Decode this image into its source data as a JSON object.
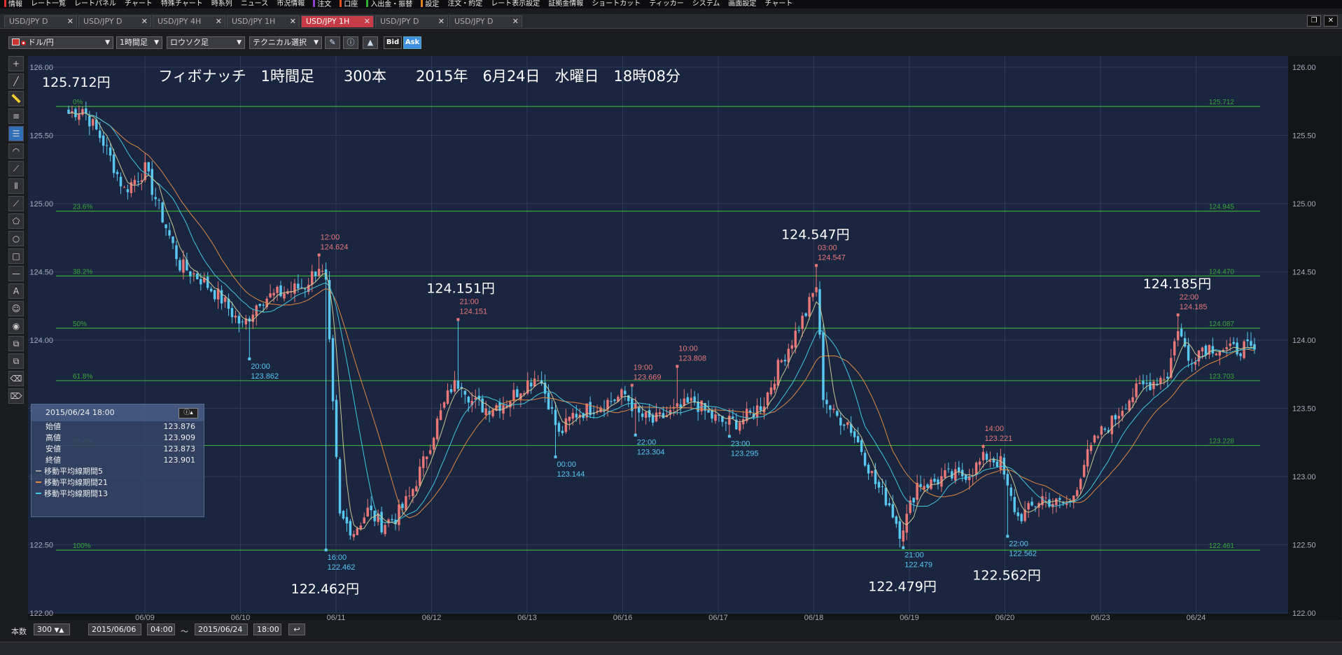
{
  "menubar": {
    "items": [
      {
        "label": "情報",
        "color": "#e03030"
      },
      {
        "label": "レート一覧",
        "color": ""
      },
      {
        "label": "レートパネル",
        "color": ""
      },
      {
        "label": "チャート",
        "color": ""
      },
      {
        "label": "特殊チャート",
        "color": ""
      },
      {
        "label": "時系列",
        "color": ""
      },
      {
        "label": "ニュース",
        "color": ""
      },
      {
        "label": "市況情報",
        "color": ""
      },
      {
        "label": "注文",
        "color": "#9040d0"
      },
      {
        "label": "口座",
        "color": "#e05020"
      },
      {
        "label": "入出金・振替",
        "color": "#30b030"
      },
      {
        "label": "設定",
        "color": "#e08020"
      },
      {
        "label": "注文・約定",
        "color": ""
      },
      {
        "label": "レート表示設定",
        "color": ""
      },
      {
        "label": "証拠金情報",
        "color": ""
      },
      {
        "label": "ショートカット",
        "color": ""
      },
      {
        "label": "ティッカー",
        "color": ""
      },
      {
        "label": "システム",
        "color": ""
      },
      {
        "label": "画面設定",
        "color": ""
      },
      {
        "label": "チャート",
        "color": ""
      }
    ]
  },
  "tabs": [
    {
      "label": "USD/JPY D",
      "active": false
    },
    {
      "label": "USD/JPY D",
      "active": false
    },
    {
      "label": "USD/JPY 4H",
      "active": false
    },
    {
      "label": "USD/JPY 1H",
      "active": false
    },
    {
      "label": "USD/JPY 1H",
      "active": true
    },
    {
      "label": "USD/JPY D",
      "active": false
    },
    {
      "label": "USD/JPY D",
      "active": false
    }
  ],
  "toolbar": {
    "pair": "ドル/円",
    "timeframe": "1時間足",
    "candle": "ロウソク足",
    "technical": "テクニカル選択",
    "bid": "Bid",
    "ask": "Ask"
  },
  "bottom": {
    "count_label": "本数",
    "count_value": "300",
    "start_date": "2015/06/06",
    "start_time": "04:00",
    "tilde": "〜",
    "end_date": "2015/06/24",
    "end_time": "18:00"
  },
  "info_panel": {
    "date": "2015/06/24 18:00",
    "rows": [
      {
        "label": "始値",
        "value": "123.876"
      },
      {
        "label": "高値",
        "value": "123.909"
      },
      {
        "label": "安値",
        "value": "123.873"
      },
      {
        "label": "終値",
        "value": "123.901"
      }
    ],
    "ma": [
      {
        "label": "移動平均線期間5",
        "color": "#a0a0a0"
      },
      {
        "label": "移動平均線期間21",
        "color": "#e08840"
      },
      {
        "label": "移動平均線期間13",
        "color": "#40c8e0"
      }
    ]
  },
  "chart_data": {
    "type": "candlestick",
    "title": "フィボナッチ　1時間足　　300本　　2015年　6月24日　水曜日　18時08分",
    "ylim": [
      122.0,
      126.0
    ],
    "y_ticks": [
      "126.00",
      "125.50",
      "125.00",
      "124.50",
      "124.00",
      "123.50",
      "123.00",
      "122.50",
      "122.00"
    ],
    "x_ticks": [
      "06/09",
      "06/10",
      "06/11",
      "06/12",
      "06/13",
      "06/16",
      "06/17",
      "06/18",
      "06/19",
      "06/20",
      "06/23",
      "06/24"
    ],
    "colors": {
      "up": "#e87878",
      "down": "#58c8f0",
      "fib": "#38a838",
      "ma5": "#c8c890",
      "ma13": "#40c8e0",
      "ma21": "#e08840",
      "grid": "#2d3a5a",
      "bg": "#1a2540"
    },
    "fib_levels": [
      {
        "pct": "0%",
        "price": 125.712,
        "label": "125.712"
      },
      {
        "pct": "23.6%",
        "price": 124.945,
        "label": "124.945"
      },
      {
        "pct": "38.2%",
        "price": 124.47,
        "label": "124.470"
      },
      {
        "pct": "50%",
        "price": 124.087,
        "label": "124.087"
      },
      {
        "pct": "61.8%",
        "price": 123.703,
        "label": "123.703"
      },
      {
        "pct": "76.4%",
        "price": 123.228,
        "label": "123.228"
      },
      {
        "pct": "100%",
        "price": 122.461,
        "label": "122.461"
      }
    ],
    "price_path": [
      [
        0,
        125.66
      ],
      [
        4,
        125.7
      ],
      [
        10,
        125.45
      ],
      [
        16,
        125.1
      ],
      [
        22,
        125.25
      ],
      [
        27,
        124.9
      ],
      [
        32,
        124.55
      ],
      [
        38,
        124.45
      ],
      [
        44,
        124.3
      ],
      [
        50,
        124.1
      ],
      [
        55,
        124.3
      ],
      [
        62,
        124.35
      ],
      [
        68,
        124.4
      ],
      [
        72,
        124.55
      ],
      [
        74,
        124.4
      ],
      [
        76,
        123.5
      ],
      [
        78,
        122.7
      ],
      [
        82,
        122.6
      ],
      [
        86,
        122.75
      ],
      [
        90,
        122.65
      ],
      [
        94,
        122.7
      ],
      [
        98,
        122.85
      ],
      [
        102,
        123.1
      ],
      [
        106,
        123.4
      ],
      [
        110,
        123.65
      ],
      [
        113,
        123.7
      ],
      [
        116,
        123.55
      ],
      [
        120,
        123.5
      ],
      [
        126,
        123.55
      ],
      [
        130,
        123.65
      ],
      [
        135,
        123.75
      ],
      [
        138,
        123.55
      ],
      [
        141,
        123.3
      ],
      [
        145,
        123.45
      ],
      [
        150,
        123.5
      ],
      [
        155,
        123.55
      ],
      [
        160,
        123.6
      ],
      [
        164,
        123.45
      ],
      [
        168,
        123.4
      ],
      [
        172,
        123.45
      ],
      [
        176,
        123.5
      ],
      [
        180,
        123.55
      ],
      [
        184,
        123.45
      ],
      [
        188,
        123.4
      ],
      [
        192,
        123.4
      ],
      [
        196,
        123.45
      ],
      [
        200,
        123.55
      ],
      [
        204,
        123.8
      ],
      [
        208,
        124.0
      ],
      [
        212,
        124.2
      ],
      [
        215,
        124.4
      ],
      [
        217,
        123.6
      ],
      [
        220,
        123.45
      ],
      [
        224,
        123.4
      ],
      [
        228,
        123.2
      ],
      [
        232,
        122.95
      ],
      [
        236,
        122.8
      ],
      [
        239,
        122.6
      ],
      [
        241,
        122.7
      ],
      [
        244,
        122.95
      ],
      [
        248,
        122.95
      ],
      [
        252,
        123.0
      ],
      [
        256,
        123.0
      ],
      [
        260,
        123.05
      ],
      [
        264,
        123.15
      ],
      [
        268,
        123.1
      ],
      [
        270,
        122.9
      ],
      [
        273,
        122.7
      ],
      [
        276,
        122.75
      ],
      [
        280,
        122.85
      ],
      [
        284,
        122.8
      ],
      [
        288,
        122.8
      ],
      [
        292,
        123.1
      ],
      [
        296,
        123.3
      ],
      [
        300,
        123.4
      ],
      [
        304,
        123.55
      ],
      [
        308,
        123.65
      ],
      [
        312,
        123.7
      ],
      [
        316,
        123.75
      ],
      [
        319,
        124.1
      ],
      [
        322,
        123.85
      ],
      [
        326,
        123.95
      ],
      [
        330,
        123.95
      ],
      [
        334,
        123.92
      ],
      [
        338,
        123.95
      ],
      [
        341,
        123.9
      ]
    ],
    "bar_count": 342,
    "annotations_big": [
      {
        "text": "125.712円",
        "idx": 1,
        "price": 125.712,
        "pos": "above"
      },
      {
        "text": "122.462円",
        "idx": 74,
        "price": 122.462,
        "pos": "below"
      },
      {
        "text": "124.151円",
        "idx": 113,
        "price": 124.151,
        "pos": "above"
      },
      {
        "text": "124.547円",
        "idx": 215,
        "price": 124.547,
        "pos": "above"
      },
      {
        "text": "122.479円",
        "idx": 240,
        "price": 122.479,
        "pos": "below"
      },
      {
        "text": "122.562円",
        "idx": 270,
        "price": 122.562,
        "pos": "below"
      },
      {
        "text": "124.185円",
        "idx": 319,
        "price": 124.185,
        "pos": "above"
      }
    ],
    "annotations_small": [
      {
        "time": "12:00",
        "price_label": "124.624",
        "idx": 72,
        "price": 124.624,
        "kind": "high"
      },
      {
        "time": "20:00",
        "price_label": "123.862",
        "idx": 52,
        "price": 123.862,
        "kind": "low"
      },
      {
        "time": "16:00",
        "price_label": "122.462",
        "idx": 74,
        "price": 122.462,
        "kind": "low"
      },
      {
        "time": "21:00",
        "price_label": "124.151",
        "idx": 112,
        "price": 124.151,
        "kind": "high"
      },
      {
        "time": "00:00",
        "price_label": "123.144",
        "idx": 140,
        "price": 123.144,
        "kind": "low"
      },
      {
        "time": "19:00",
        "price_label": "123.669",
        "idx": 162,
        "price": 123.669,
        "kind": "high"
      },
      {
        "time": "22:00",
        "price_label": "123.304",
        "idx": 163,
        "price": 123.304,
        "kind": "low"
      },
      {
        "time": "10:00",
        "price_label": "123.808",
        "idx": 175,
        "price": 123.808,
        "kind": "high"
      },
      {
        "time": "23:00",
        "price_label": "123.295",
        "idx": 190,
        "price": 123.295,
        "kind": "low"
      },
      {
        "time": "03:00",
        "price_label": "124.547",
        "idx": 215,
        "price": 124.547,
        "kind": "high"
      },
      {
        "time": "21:00",
        "price_label": "122.479",
        "idx": 240,
        "price": 122.479,
        "kind": "low"
      },
      {
        "time": "14:00",
        "price_label": "123.221",
        "idx": 263,
        "price": 123.221,
        "kind": "high"
      },
      {
        "time": "22:00",
        "price_label": "122.562",
        "idx": 270,
        "price": 122.562,
        "kind": "low"
      },
      {
        "time": "22:00",
        "price_label": "124.185",
        "idx": 319,
        "price": 124.185,
        "kind": "high"
      }
    ]
  }
}
